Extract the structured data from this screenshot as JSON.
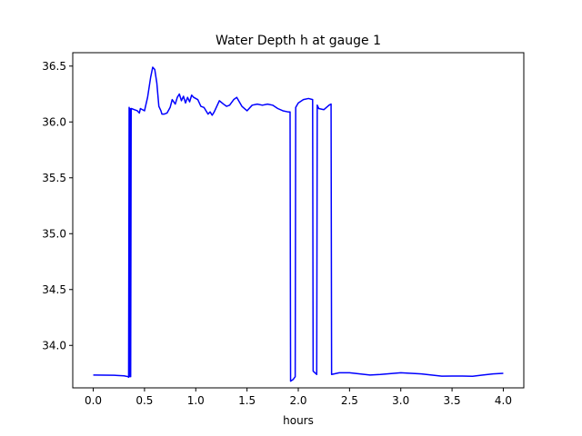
{
  "chart_data": {
    "type": "line",
    "title": "Water Depth h at gauge 1",
    "xlabel": "hours",
    "ylabel": "",
    "xlim": [
      -0.2,
      4.2
    ],
    "ylim": [
      33.62,
      36.62
    ],
    "x_ticks": [
      0.0,
      0.5,
      1.0,
      1.5,
      2.0,
      2.5,
      3.0,
      3.5,
      4.0
    ],
    "x_tick_labels": [
      "0.0",
      "0.5",
      "1.0",
      "1.5",
      "2.0",
      "2.5",
      "3.0",
      "3.5",
      "4.0"
    ],
    "y_ticks": [
      34.0,
      34.5,
      35.0,
      35.5,
      36.0,
      36.5
    ],
    "y_tick_labels": [
      "34.0",
      "34.5",
      "35.0",
      "35.5",
      "36.0",
      "36.5"
    ],
    "grid": false,
    "legend": "none",
    "line_color": "#0000ff",
    "series": [
      {
        "x": [
          0.0,
          0.2,
          0.3,
          0.34,
          0.345,
          0.35,
          0.352,
          0.36,
          0.365,
          0.37,
          0.372,
          0.4,
          0.43,
          0.45,
          0.46,
          0.48,
          0.5,
          0.53,
          0.56,
          0.58,
          0.6,
          0.62,
          0.64,
          0.66,
          0.67,
          0.69,
          0.72,
          0.75,
          0.77,
          0.8,
          0.82,
          0.84,
          0.86,
          0.88,
          0.9,
          0.92,
          0.94,
          0.96,
          0.98,
          1.0,
          1.02,
          1.05,
          1.08,
          1.1,
          1.12,
          1.14,
          1.16,
          1.18,
          1.2,
          1.23,
          1.27,
          1.3,
          1.33,
          1.37,
          1.4,
          1.45,
          1.5,
          1.55,
          1.6,
          1.65,
          1.7,
          1.75,
          1.8,
          1.85,
          1.9,
          1.92,
          1.925,
          1.95,
          1.97,
          1.975,
          2.0,
          2.05,
          2.1,
          2.14,
          2.145,
          2.18,
          2.185,
          2.2,
          2.25,
          2.3,
          2.32,
          2.325,
          2.4,
          2.5,
          2.6,
          2.7,
          2.8,
          3.0,
          3.2,
          3.4,
          3.5,
          3.6,
          3.7,
          3.8,
          3.9,
          4.0
        ],
        "y": [
          33.735,
          33.733,
          33.728,
          33.72,
          33.715,
          36.13,
          33.72,
          36.12,
          33.72,
          36.11,
          36.12,
          36.11,
          36.1,
          36.08,
          36.12,
          36.11,
          36.1,
          36.22,
          36.4,
          36.49,
          36.47,
          36.35,
          36.14,
          36.1,
          36.07,
          36.07,
          36.08,
          36.13,
          36.2,
          36.16,
          36.22,
          36.25,
          36.19,
          36.23,
          36.17,
          36.22,
          36.18,
          36.24,
          36.22,
          36.21,
          36.2,
          36.14,
          36.13,
          36.1,
          36.07,
          36.09,
          36.06,
          36.09,
          36.13,
          36.19,
          36.16,
          36.14,
          36.15,
          36.2,
          36.22,
          36.14,
          36.1,
          36.15,
          36.16,
          36.15,
          36.16,
          36.15,
          36.12,
          36.1,
          36.09,
          36.09,
          33.68,
          33.695,
          33.72,
          36.13,
          36.17,
          36.2,
          36.21,
          36.2,
          33.77,
          33.74,
          36.15,
          36.12,
          36.11,
          36.15,
          36.16,
          33.74,
          33.755,
          33.755,
          33.745,
          33.735,
          33.74,
          33.755,
          33.745,
          33.725,
          33.726,
          33.726,
          33.724,
          33.735,
          33.745,
          33.75
        ]
      }
    ]
  }
}
